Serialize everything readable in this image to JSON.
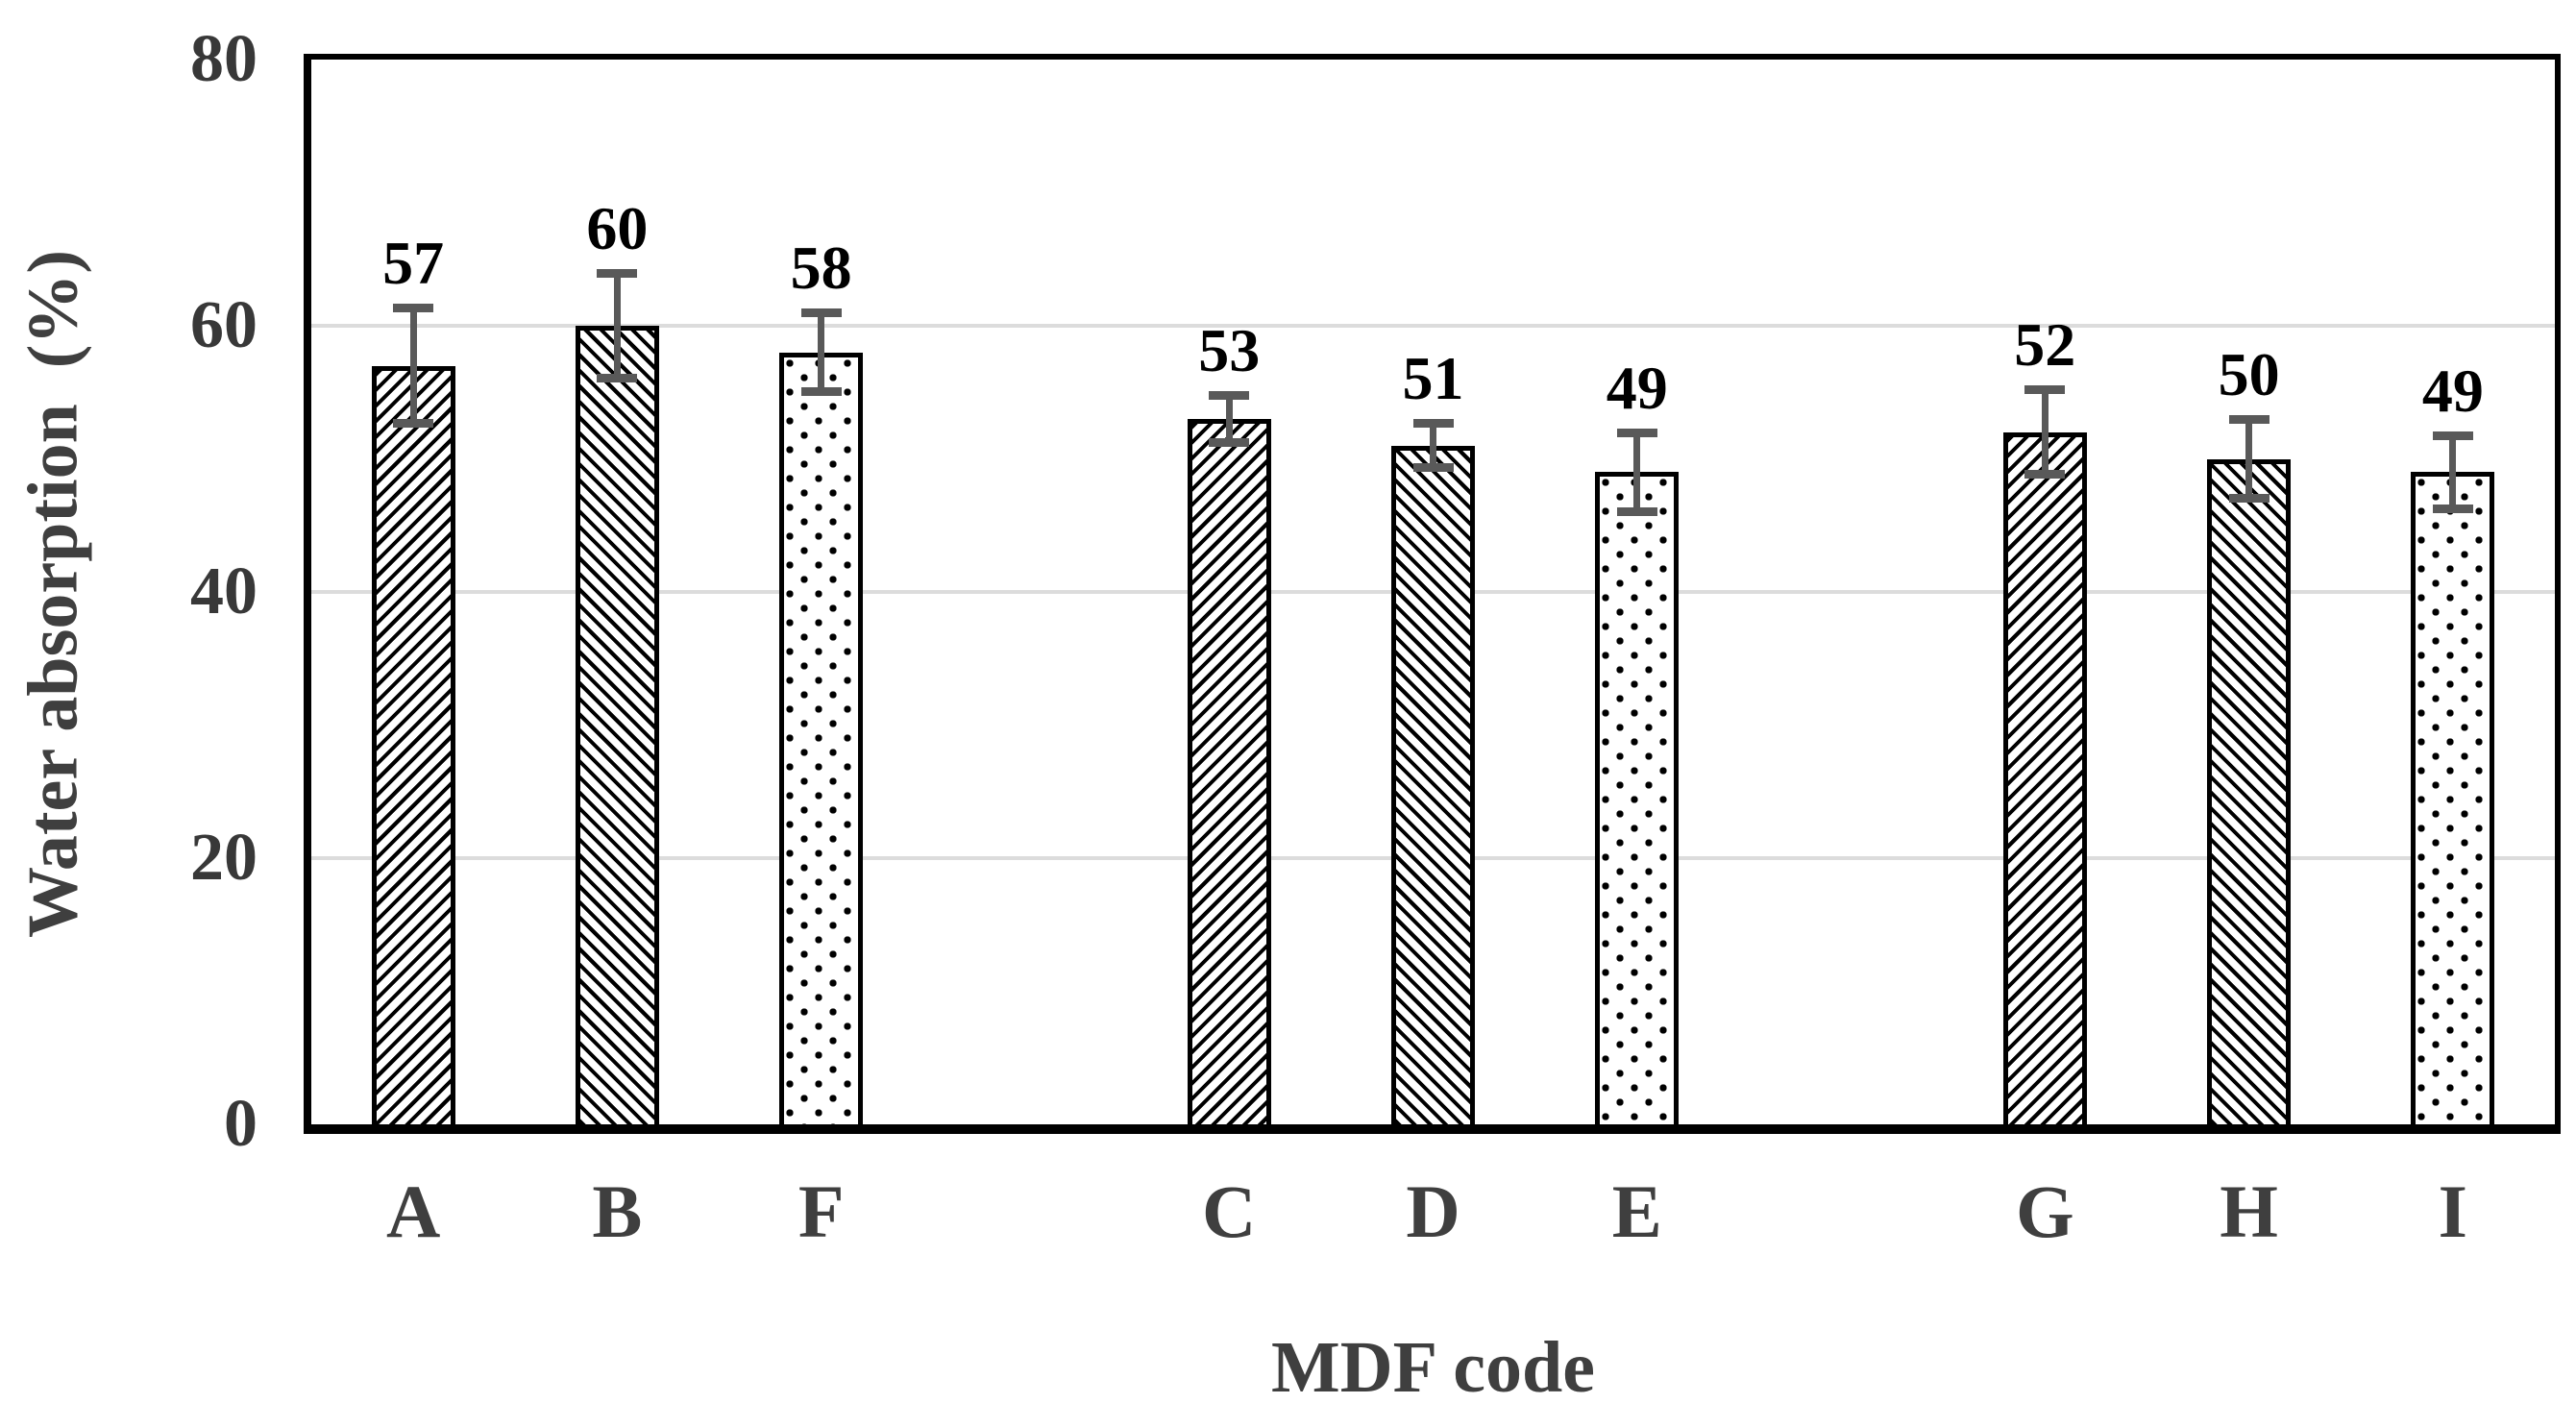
{
  "chart_data": {
    "type": "bar",
    "title": "",
    "xlabel": "MDF code",
    "ylabel": "Water absorption  (%)",
    "ylim": [
      0,
      80
    ],
    "yticks": [
      80,
      60,
      40,
      20,
      0
    ],
    "grid_values": [
      60,
      40,
      20
    ],
    "grid_on": true,
    "legend": "none",
    "n_slots": 11,
    "categories": [
      "A",
      "B",
      "F",
      "",
      "C",
      "D",
      "E",
      "",
      "G",
      "H",
      "I"
    ],
    "bars": [
      {
        "slot": 0,
        "label": "A",
        "value": 57,
        "error": 4.4,
        "pattern": "diagonal-up"
      },
      {
        "slot": 1,
        "label": "B",
        "value": 60,
        "error": 4.0,
        "pattern": "diagonal-down"
      },
      {
        "slot": 2,
        "label": "F",
        "value": 58,
        "error": 3.0,
        "pattern": "dots"
      },
      {
        "slot": 4,
        "label": "C",
        "value": 53,
        "error": 1.8,
        "pattern": "diagonal-up"
      },
      {
        "slot": 5,
        "label": "D",
        "value": 51,
        "error": 1.7,
        "pattern": "diagonal-down"
      },
      {
        "slot": 6,
        "label": "E",
        "value": 49,
        "error": 3.0,
        "pattern": "dots"
      },
      {
        "slot": 8,
        "label": "G",
        "value": 52,
        "error": 3.2,
        "pattern": "diagonal-up"
      },
      {
        "slot": 9,
        "label": "H",
        "value": 50,
        "error": 3.0,
        "pattern": "diagonal-down"
      },
      {
        "slot": 10,
        "label": "I",
        "value": 49,
        "error": 2.8,
        "pattern": "dots"
      }
    ],
    "colors": {
      "bar_fill": "#ffffff",
      "bar_hatch": "#000000",
      "bar_border": "#000000",
      "error_bar": "#595959",
      "gridline": "#dcdcdc",
      "frame": "#000000",
      "tick_label": "#383838",
      "category_label": "#3f3f3f",
      "axis_title": "#3f3f3f",
      "value_label": "#000000"
    }
  }
}
